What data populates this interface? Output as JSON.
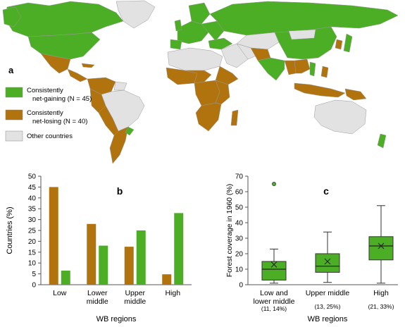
{
  "colors": {
    "gaining": "#4cae25",
    "losing": "#b0730e",
    "other": "#e2e2e2",
    "border": "#9a9a9a",
    "axis": "#555555"
  },
  "map": {
    "panel_label": "a",
    "legend": [
      {
        "key": "gaining",
        "text": [
          "Consistently",
          "net-gaining (N = 45)"
        ]
      },
      {
        "key": "losing",
        "text": [
          "Consistently",
          "net-losing (N = 40)"
        ]
      },
      {
        "key": "other",
        "text": [
          "Other countries"
        ]
      }
    ]
  },
  "chart_data": [
    {
      "type": "bar",
      "panel_label": "b",
      "categories": [
        [
          "Low"
        ],
        [
          "Lower",
          "middle"
        ],
        [
          "Upper",
          "middle"
        ],
        [
          "High"
        ]
      ],
      "series": [
        {
          "key": "losing",
          "values": [
            45,
            28,
            17.5,
            4.8
          ]
        },
        {
          "key": "gaining",
          "values": [
            6.5,
            18,
            25,
            33
          ]
        }
      ],
      "ylabel": "Countries (%)",
      "xlabel": "WB regions",
      "ylim": [
        0,
        50
      ],
      "yticks": [
        0,
        5,
        10,
        15,
        20,
        25,
        30,
        35,
        40,
        45,
        50
      ],
      "grid": false
    },
    {
      "type": "box",
      "panel_label": "c",
      "categories": [
        [
          "Low and",
          "lower middle"
        ],
        [
          "Upper middle"
        ],
        [
          "High"
        ]
      ],
      "sublabels": [
        "(11, 14%)",
        "(13, 25%)",
        "(21, 33%)"
      ],
      "boxes": [
        {
          "whisker_low": 1,
          "q1": 3,
          "median": 10,
          "q3": 15,
          "whisker_high": 23,
          "mean": 13,
          "outliers": [
            65
          ]
        },
        {
          "whisker_low": 1.5,
          "q1": 8,
          "median": 12,
          "q3": 20,
          "whisker_high": 34,
          "mean": 15,
          "outliers": []
        },
        {
          "whisker_low": 1,
          "q1": 16,
          "median": 25,
          "q3": 31,
          "whisker_high": 51,
          "mean": 25,
          "outliers": []
        }
      ],
      "ylabel": "Forest coverage in 1960 (%)",
      "xlabel": "WB regions",
      "ylim": [
        0,
        70
      ],
      "yticks": [
        0,
        10,
        20,
        30,
        40,
        50,
        60,
        70
      ],
      "grid": false
    }
  ]
}
